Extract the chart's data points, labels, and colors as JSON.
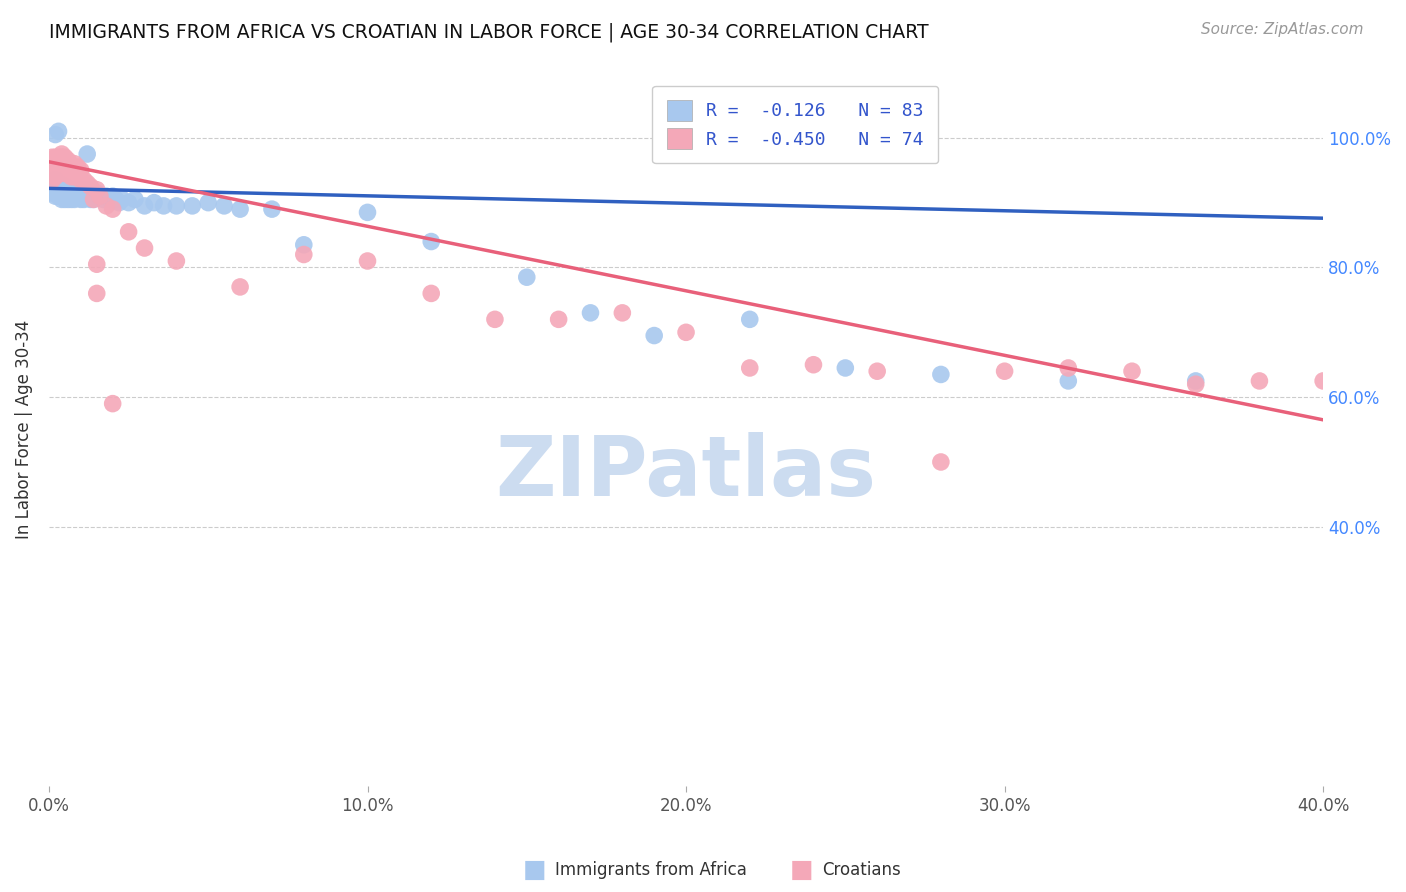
{
  "title": "IMMIGRANTS FROM AFRICA VS CROATIAN IN LABOR FORCE | AGE 30-34 CORRELATION CHART",
  "source": "Source: ZipAtlas.com",
  "ylabel": "In Labor Force | Age 30-34",
  "xlim": [
    0.0,
    0.4
  ],
  "ylim": [
    0.0,
    1.1
  ],
  "xtick_labels": [
    "0.0%",
    "10.0%",
    "20.0%",
    "30.0%",
    "40.0%"
  ],
  "xtick_vals": [
    0.0,
    0.1,
    0.2,
    0.3,
    0.4
  ],
  "ytick_labels_right": [
    "100.0%",
    "80.0%",
    "60.0%",
    "40.0%"
  ],
  "ytick_vals_right": [
    1.0,
    0.8,
    0.6,
    0.4
  ],
  "blue_R": "-0.126",
  "blue_N": "83",
  "pink_R": "-0.450",
  "pink_N": "74",
  "blue_color": "#a8c8ee",
  "pink_color": "#f4a8b8",
  "blue_line_color": "#3060c0",
  "pink_line_color": "#e8607a",
  "watermark": "ZIPatlas",
  "watermark_color": "#ccdcf0",
  "background_color": "#ffffff",
  "grid_color": "#cccccc",
  "blue_line_x0": 0.0,
  "blue_line_y0": 0.922,
  "blue_line_x1": 0.4,
  "blue_line_y1": 0.876,
  "pink_line_x0": 0.0,
  "pink_line_y0": 0.963,
  "pink_line_x1": 0.4,
  "pink_line_y1": 0.565,
  "blue_x": [
    0.001,
    0.001,
    0.001,
    0.002,
    0.002,
    0.002,
    0.002,
    0.002,
    0.003,
    0.003,
    0.003,
    0.003,
    0.003,
    0.003,
    0.004,
    0.004,
    0.004,
    0.004,
    0.004,
    0.005,
    0.005,
    0.005,
    0.005,
    0.005,
    0.006,
    0.006,
    0.006,
    0.006,
    0.007,
    0.007,
    0.007,
    0.007,
    0.008,
    0.008,
    0.008,
    0.009,
    0.009,
    0.01,
    0.01,
    0.01,
    0.011,
    0.011,
    0.012,
    0.012,
    0.013,
    0.013,
    0.014,
    0.014,
    0.015,
    0.015,
    0.016,
    0.017,
    0.018,
    0.019,
    0.02,
    0.021,
    0.022,
    0.023,
    0.025,
    0.027,
    0.03,
    0.033,
    0.036,
    0.04,
    0.045,
    0.05,
    0.055,
    0.06,
    0.07,
    0.08,
    0.1,
    0.12,
    0.15,
    0.17,
    0.19,
    0.22,
    0.25,
    0.28,
    0.32,
    0.36,
    0.002,
    0.003,
    0.012
  ],
  "blue_y": [
    0.92,
    0.93,
    0.915,
    0.925,
    0.91,
    0.92,
    0.93,
    0.935,
    0.915,
    0.925,
    0.92,
    0.93,
    0.91,
    0.915,
    0.925,
    0.92,
    0.915,
    0.91,
    0.905,
    0.925,
    0.92,
    0.915,
    0.91,
    0.905,
    0.92,
    0.915,
    0.91,
    0.905,
    0.92,
    0.915,
    0.91,
    0.905,
    0.915,
    0.91,
    0.905,
    0.915,
    0.91,
    0.92,
    0.915,
    0.905,
    0.91,
    0.905,
    0.92,
    0.91,
    0.915,
    0.905,
    0.91,
    0.905,
    0.915,
    0.91,
    0.91,
    0.905,
    0.91,
    0.905,
    0.91,
    0.905,
    0.9,
    0.905,
    0.9,
    0.905,
    0.895,
    0.9,
    0.895,
    0.895,
    0.895,
    0.9,
    0.895,
    0.89,
    0.89,
    0.835,
    0.885,
    0.84,
    0.785,
    0.73,
    0.695,
    0.72,
    0.645,
    0.635,
    0.625,
    0.625,
    1.005,
    1.01,
    0.975
  ],
  "pink_x": [
    0.001,
    0.001,
    0.001,
    0.001,
    0.002,
    0.002,
    0.002,
    0.002,
    0.002,
    0.002,
    0.003,
    0.003,
    0.003,
    0.003,
    0.003,
    0.003,
    0.003,
    0.004,
    0.004,
    0.004,
    0.004,
    0.004,
    0.004,
    0.005,
    0.005,
    0.005,
    0.005,
    0.005,
    0.005,
    0.006,
    0.006,
    0.006,
    0.006,
    0.007,
    0.007,
    0.008,
    0.008,
    0.008,
    0.009,
    0.009,
    0.01,
    0.01,
    0.011,
    0.012,
    0.013,
    0.014,
    0.015,
    0.016,
    0.018,
    0.02,
    0.025,
    0.03,
    0.04,
    0.06,
    0.08,
    0.1,
    0.12,
    0.14,
    0.16,
    0.18,
    0.2,
    0.22,
    0.24,
    0.26,
    0.28,
    0.3,
    0.32,
    0.34,
    0.36,
    0.38,
    0.4,
    0.015,
    0.015,
    0.02
  ],
  "pink_y": [
    0.935,
    0.945,
    0.96,
    0.97,
    0.94,
    0.95,
    0.96,
    0.97,
    0.95,
    0.965,
    0.95,
    0.96,
    0.95,
    0.96,
    0.97,
    0.945,
    0.955,
    0.955,
    0.96,
    0.97,
    0.96,
    0.97,
    0.975,
    0.96,
    0.96,
    0.965,
    0.97,
    0.945,
    0.955,
    0.955,
    0.96,
    0.965,
    0.945,
    0.95,
    0.94,
    0.95,
    0.94,
    0.96,
    0.95,
    0.955,
    0.935,
    0.95,
    0.935,
    0.93,
    0.925,
    0.905,
    0.92,
    0.91,
    0.895,
    0.89,
    0.855,
    0.83,
    0.81,
    0.77,
    0.82,
    0.81,
    0.76,
    0.72,
    0.72,
    0.73,
    0.7,
    0.645,
    0.65,
    0.64,
    0.5,
    0.64,
    0.645,
    0.64,
    0.62,
    0.625,
    0.625,
    0.76,
    0.805,
    0.59
  ],
  "legend_label_blue": "Immigrants from Africa",
  "legend_label_pink": "Croatians"
}
